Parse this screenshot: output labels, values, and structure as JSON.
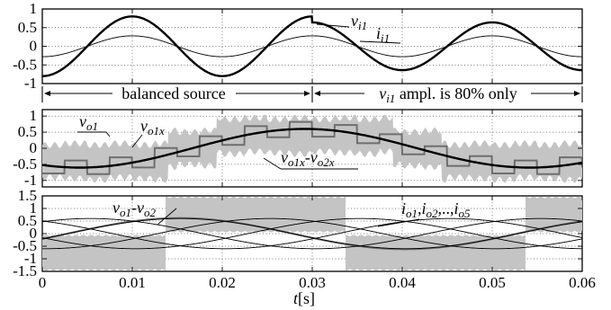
{
  "chart_data": {
    "type": "line",
    "xlabel": "t[s]",
    "xlim": [
      0,
      0.06
    ],
    "xticks": [
      0,
      0.01,
      0.02,
      0.03,
      0.04,
      0.05,
      0.06
    ],
    "xtick_labels": [
      "0",
      "0.01",
      "0.02",
      "0.03",
      "0.04",
      "0.05",
      "0.06"
    ],
    "panels": [
      {
        "id": "top",
        "ylim": [
          -1,
          1
        ],
        "yticks": [
          1,
          0.5,
          0,
          -0.5,
          -1
        ],
        "ytick_labels": [
          "1",
          "0.5",
          "0",
          "-0.5",
          "-1"
        ],
        "grid": true,
        "series": [
          {
            "label": "v_i1",
            "style": "thick-black",
            "amplitude_before": 0.8,
            "amplitude_after": 0.64,
            "phase_deg": -90,
            "freq_hz": 50
          },
          {
            "label": "i_i1",
            "style": "thin-black",
            "amplitude": 0.28,
            "phase_deg": -90,
            "freq_hz": 50
          }
        ],
        "annotations": [
          {
            "text": "balanced source",
            "x_from": 0,
            "x_to": 0.03
          },
          {
            "text": "v_i1 ampl. is 80% only",
            "x_from": 0.03,
            "x_to": 0.06
          }
        ]
      },
      {
        "id": "middle",
        "ylim": [
          -1.2,
          1.2
        ],
        "yticks": [
          1,
          0.5,
          0,
          -0.5,
          -1
        ],
        "ytick_labels": [
          "1",
          "0.5",
          "0",
          "-0.5",
          "-1"
        ],
        "grid": true,
        "series": [
          {
            "label": "v_o1",
            "style": "gray-band-pwm"
          },
          {
            "label": "v_o1x",
            "style": "gray-staircase"
          },
          {
            "label": "v_o1x-v_o2x",
            "style": "thick-black",
            "amplitude": 0.6,
            "phase_deg": -120,
            "freq_hz": 20
          }
        ]
      },
      {
        "id": "bottom",
        "ylim": [
          -1.5,
          1.5
        ],
        "yticks": [
          1.5,
          1,
          0.5,
          0,
          -0.5,
          -1,
          -1.5
        ],
        "ytick_labels": [
          "1.5",
          "1",
          "0.5",
          "0",
          "-0.5",
          "-1",
          "-1.5"
        ],
        "grid": true,
        "series": [
          {
            "label": "v_o1-v_o2",
            "style": "gray-band-pwm"
          },
          {
            "label": "i_o1,i_o2,...,i_o5",
            "style": "thin-black",
            "count": 5,
            "amplitude": 0.6,
            "freq_hz": 20
          }
        ]
      }
    ]
  },
  "text": {
    "label_vi1": "v",
    "label_vi1_sub": "i1",
    "label_ii1": "i",
    "label_ii1_sub": "i1",
    "ann_balanced": "balanced source",
    "ann_80_a": "v",
    "ann_80_sub": "i1",
    "ann_80_b": " ampl. is 80% only",
    "label_vo1": "v",
    "label_vo1_sub": "o1",
    "label_vo1x": "v",
    "label_vo1x_sub": "o1x",
    "label_diff_a": "v",
    "label_diff_sub1": "o1x",
    "label_diff_mid": "-v",
    "label_diff_sub2": "o2x",
    "label_vo12_a": "v",
    "label_vo12_sub1": "o1",
    "label_vo12_mid": "-v",
    "label_vo12_sub2": "o2",
    "label_io_1": "i",
    "label_io_1s": "o1",
    "label_io_c1": ",",
    "label_io_2": "i",
    "label_io_2s": "o2",
    "label_io_mid": ",..,",
    "label_io_3": "i",
    "label_io_3s": "o5",
    "xlabel_t": "t",
    "xlabel_unit": "[s]"
  }
}
